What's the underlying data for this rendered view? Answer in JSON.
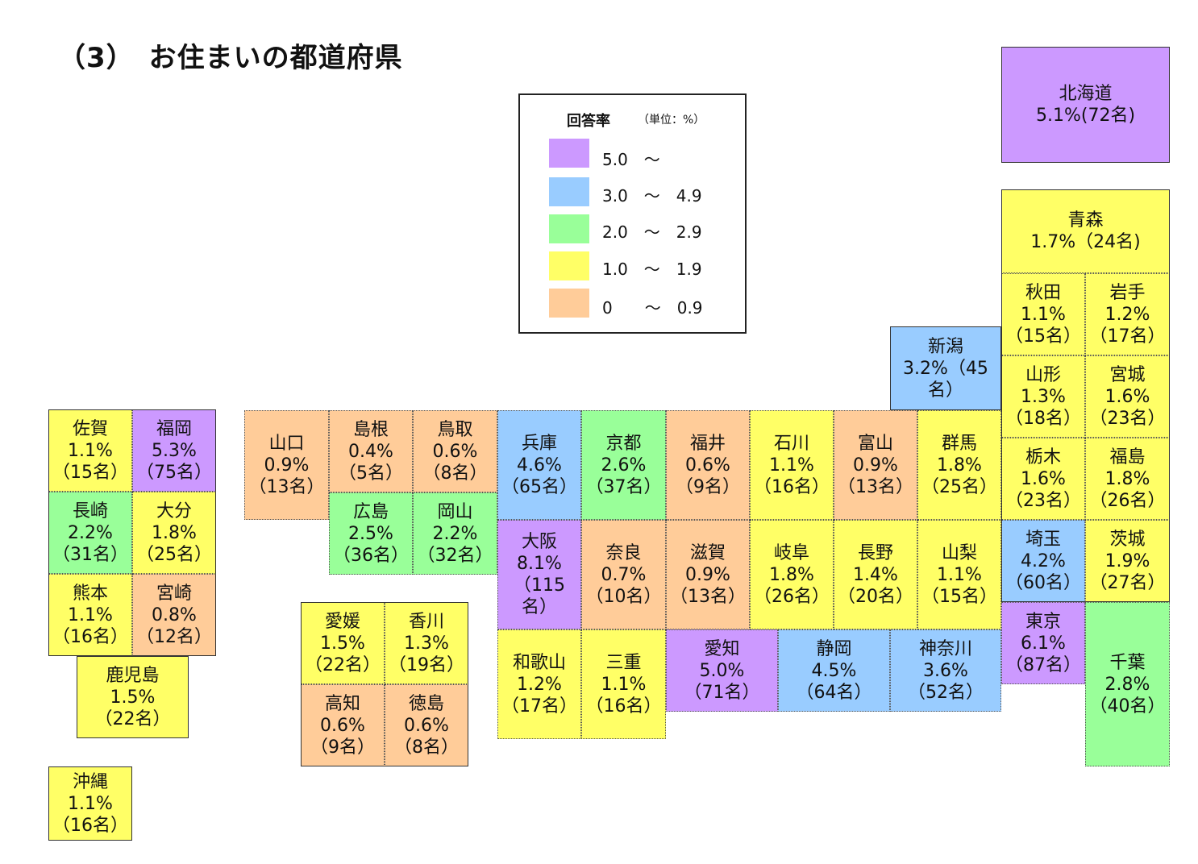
{
  "title": "（3）　お住まいの都道府県",
  "legend": {
    "title": "回答率",
    "unit": "（単位：%）",
    "items": [
      {
        "label": "5.0　～",
        "color": "#cc99ff"
      },
      {
        "label": "3.0　～　4.9",
        "color": "#99ccff"
      },
      {
        "label": "2.0　～　2.9",
        "color": "#99ff99"
      },
      {
        "label": "1.0　～　1.9",
        "color": "#ffff66"
      },
      {
        "label": "0　　～　0.9",
        "color": "#ffcc99"
      }
    ]
  },
  "prefectures": {
    "hokkaido": {
      "name": "北海道",
      "value": "5.1%(72名)"
    },
    "aomori": {
      "name": "青森",
      "value": "1.7%（24名)"
    },
    "akita": {
      "name": "秋田",
      "value": "1.1%",
      "count": "（15名）"
    },
    "iwate": {
      "name": "岩手",
      "value": "1.2%",
      "count": "（17名）"
    },
    "yamagata": {
      "name": "山形",
      "value": "1.3%",
      "count": "（18名）"
    },
    "miyagi": {
      "name": "宮城",
      "value": "1.6%",
      "count": "（23名）"
    },
    "niigata": {
      "name": "新潟",
      "value": "3.2%（45",
      "count": "名）"
    },
    "tochigi": {
      "name": "栃木",
      "value": "1.6%",
      "count": "（23名）"
    },
    "fukushima": {
      "name": "福島",
      "value": "1.8%",
      "count": "（26名）"
    },
    "gunma": {
      "name": "群馬",
      "value": "1.8%",
      "count": "（25名）"
    },
    "saitama": {
      "name": "埼玉",
      "value": "4.2%",
      "count": "（60名）"
    },
    "ibaraki": {
      "name": "茨城",
      "value": "1.9%",
      "count": "（27名）"
    },
    "tokyo": {
      "name": "東京",
      "value": "6.1%",
      "count": "（87名）"
    },
    "chiba": {
      "name": "千葉",
      "value": "2.8%",
      "count": "（40名）"
    },
    "kanagawa": {
      "name": "神奈川",
      "value": "3.6%",
      "count": "（52名）"
    },
    "yamanashi": {
      "name": "山梨",
      "value": "1.1%",
      "count": "（15名）"
    },
    "nagano": {
      "name": "長野",
      "value": "1.4%",
      "count": "（20名）"
    },
    "shizuoka": {
      "name": "静岡",
      "value": "4.5%",
      "count": "（64名）"
    },
    "toyama": {
      "name": "富山",
      "value": "0.9%",
      "count": "（13名）"
    },
    "ishikawa": {
      "name": "石川",
      "value": "1.1%",
      "count": "（16名）"
    },
    "fukui": {
      "name": "福井",
      "value": "0.6%",
      "count": "（9名）"
    },
    "gifu": {
      "name": "岐阜",
      "value": "1.8%",
      "count": "（26名）"
    },
    "aichi": {
      "name": "愛知",
      "value": "5.0%",
      "count": "（71名）"
    },
    "shiga": {
      "name": "滋賀",
      "value": "0.9%",
      "count": "（13名）"
    },
    "kyoto": {
      "name": "京都",
      "value": "2.6%",
      "count": "（37名）"
    },
    "nara": {
      "name": "奈良",
      "value": "0.7%",
      "count": "（10名）"
    },
    "mie": {
      "name": "三重",
      "value": "1.1%",
      "count": "（16名）"
    },
    "hyogo": {
      "name": "兵庫",
      "value": "4.6%",
      "count": "（65名）"
    },
    "osaka": {
      "name": "大阪",
      "value": "8.1%",
      "count": "（115",
      "count2": "名）"
    },
    "wakayama": {
      "name": "和歌山",
      "value": "1.2%",
      "count": "（17名）"
    },
    "tottori": {
      "name": "鳥取",
      "value": "0.6%",
      "count": "（8名）"
    },
    "shimane": {
      "name": "島根",
      "value": "0.4%",
      "count": "（5名）"
    },
    "okayama": {
      "name": "岡山",
      "value": "2.2%",
      "count": "（32名）"
    },
    "hiroshima": {
      "name": "広島",
      "value": "2.5%",
      "count": "（36名）"
    },
    "yamaguchi": {
      "name": "山口",
      "value": "0.9%",
      "count": "（13名）"
    },
    "kagawa": {
      "name": "香川",
      "value": "1.3%",
      "count": "（19名）"
    },
    "ehime": {
      "name": "愛媛",
      "value": "1.5%",
      "count": "（22名）"
    },
    "tokushima": {
      "name": "徳島",
      "value": "0.6%",
      "count": "（8名）"
    },
    "kochi": {
      "name": "高知",
      "value": "0.6%",
      "count": "（9名）"
    },
    "fukuoka": {
      "name": "福岡",
      "value": "5.3%",
      "count": "（75名）"
    },
    "saga": {
      "name": "佐賀",
      "value": "1.1%",
      "count": "（15名）"
    },
    "nagasaki": {
      "name": "長崎",
      "value": "2.2%",
      "count": "（31名）"
    },
    "oita": {
      "name": "大分",
      "value": "1.8%",
      "count": "（25名）"
    },
    "kumamoto": {
      "name": "熊本",
      "value": "1.1%",
      "count": "（16名）"
    },
    "miyazaki": {
      "name": "宮崎",
      "value": "0.8%",
      "count": "（12名）"
    },
    "kagoshima": {
      "name": "鹿児島",
      "value": "1.5%",
      "count": "（22名）"
    },
    "okinawa": {
      "name": "沖縄",
      "value": "1.1%",
      "count": "（16名）"
    }
  }
}
